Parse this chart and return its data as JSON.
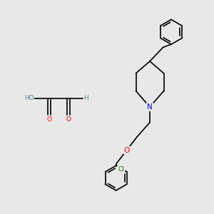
{
  "background_color": "#e8e8e8",
  "bond_color": "#000000",
  "N_color": "#0000ff",
  "O_color": "#ff0000",
  "Cl_color": "#008000",
  "H_color": "#4a8a8a",
  "line_width": 1.2,
  "font_size": 6.5,
  "fig_width": 3.0,
  "fig_height": 3.0,
  "dpi": 100,
  "xlim": [
    0,
    10
  ],
  "ylim": [
    0,
    10
  ]
}
